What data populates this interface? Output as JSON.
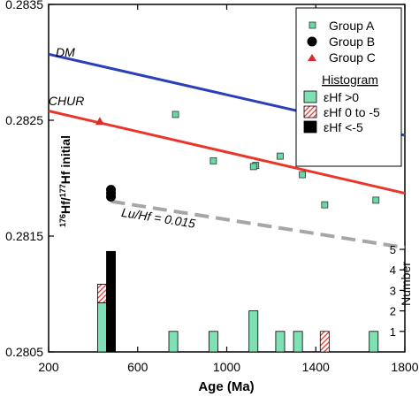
{
  "chart_data": {
    "type": "scatter",
    "xlabel": "Age (Ma)",
    "ylabel_parts": [
      "176",
      "Hf/",
      "177",
      "Hf initial"
    ],
    "right_axis_label": "Number",
    "xlim": [
      200,
      1800
    ],
    "ylim": [
      0.2805,
      0.2835
    ],
    "x_ticks": [
      200,
      600,
      1000,
      1400,
      1800
    ],
    "y_ticks": [
      0.2805,
      0.2815,
      0.2825,
      0.2835
    ],
    "y_tick_labels": [
      "0.2805",
      "0.2815",
      "0.2825",
      "0.2835"
    ],
    "hist_ticks": [
      1,
      2,
      3,
      4,
      5
    ],
    "hist_max": 5,
    "grid": false,
    "legend_position": "top-right",
    "colors": {
      "group_a": "#66d9a6",
      "group_b": "#000000",
      "group_c": "#d92b2b",
      "dm": "#2a3fb8",
      "chur": "#e8362d",
      "lu_hf": "#a6a6a6",
      "hist_pos": "#7fe0b3",
      "hist_neg": "#e8362d",
      "hist_black": "#000000"
    },
    "lines": [
      {
        "name": "DM",
        "label_at": [
          275,
          0.28305
        ],
        "x": [
          200,
          1800
        ],
        "y": [
          0.28307,
          0.28237
        ]
      },
      {
        "name": "CHUR",
        "label_at": [
          280,
          0.28263
        ],
        "x": [
          200,
          1800
        ],
        "y": [
          0.28258,
          0.28187
        ]
      },
      {
        "name": "Lu/Hf = 0.015",
        "label_at": [
          690,
          0.28162
        ],
        "x": [
          480,
          1800
        ],
        "y": [
          0.2818,
          0.2814
        ],
        "dashed": true
      }
    ],
    "series": [
      {
        "name": "Group A",
        "marker": "square",
        "points": [
          [
            770,
            0.28255
          ],
          [
            940,
            0.28215
          ],
          [
            1130,
            0.28211
          ],
          [
            1120,
            0.2821
          ],
          [
            1240,
            0.28219
          ],
          [
            1340,
            0.28203
          ],
          [
            1440,
            0.28177
          ],
          [
            1670,
            0.28181
          ]
        ]
      },
      {
        "name": "Group B",
        "marker": "circle",
        "points": [
          [
            480,
            0.2819
          ],
          [
            480,
            0.28187
          ],
          [
            480,
            0.28184
          ]
        ]
      },
      {
        "name": "Group C",
        "marker": "triangle",
        "points": [
          [
            430,
            0.28249
          ]
        ]
      }
    ],
    "legend_title": "Histogram",
    "histogram_legend": [
      {
        "label": "εHf >0",
        "kind": "pos"
      },
      {
        "label": "εHf 0 to -5",
        "kind": "neg"
      },
      {
        "label": "εHf <-5",
        "kind": "black"
      }
    ],
    "histogram_bins": [
      {
        "x0": 420,
        "x1": 460,
        "pos": 2.4,
        "neg": 0.9,
        "black": 0
      },
      {
        "x0": 460,
        "x1": 500,
        "pos": 0,
        "neg": 0,
        "black": 4.9
      },
      {
        "x0": 740,
        "x1": 780,
        "pos": 1,
        "neg": 0,
        "black": 0
      },
      {
        "x0": 920,
        "x1": 960,
        "pos": 1,
        "neg": 0,
        "black": 0
      },
      {
        "x0": 1100,
        "x1": 1140,
        "pos": 2,
        "neg": 0,
        "black": 0
      },
      {
        "x0": 1220,
        "x1": 1260,
        "pos": 1,
        "neg": 0,
        "black": 0
      },
      {
        "x0": 1300,
        "x1": 1340,
        "pos": 1,
        "neg": 0,
        "black": 0
      },
      {
        "x0": 1420,
        "x1": 1460,
        "pos": 0,
        "neg": 1,
        "black": 0
      },
      {
        "x0": 1640,
        "x1": 1680,
        "pos": 1,
        "neg": 0,
        "black": 0
      }
    ]
  }
}
